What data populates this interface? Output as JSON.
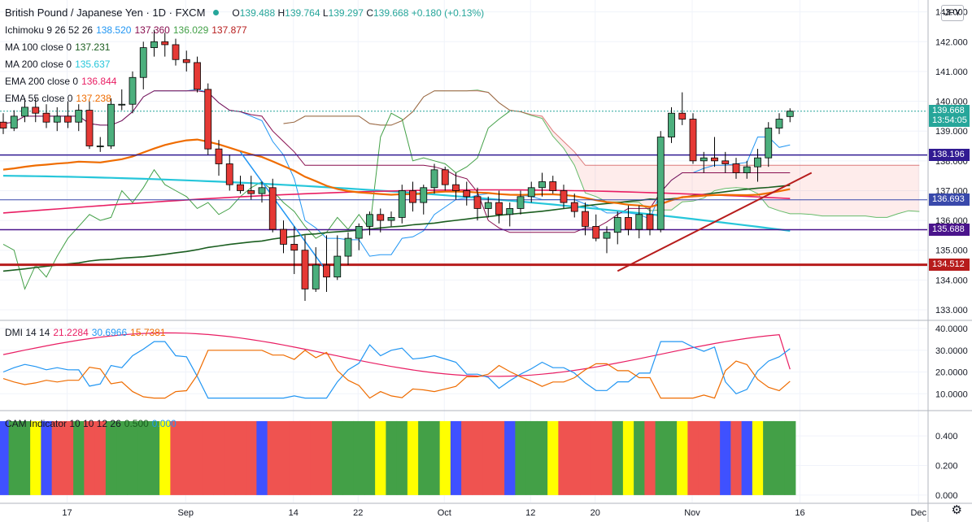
{
  "header": {
    "title": "British Pound / Japanese Yen · 1D · FXCM",
    "ohlc": [
      {
        "k": "O",
        "v": "139.488"
      },
      {
        "k": "H",
        "v": "139.764"
      },
      {
        "k": "L",
        "v": "139.297"
      },
      {
        "k": "C",
        "v": "139.668"
      }
    ],
    "change": "+0.180 (+0.13%)",
    "currency_badge": "JPY"
  },
  "indicators": [
    {
      "label": "Ichimoku 9 26 52 26",
      "values": [
        {
          "v": "138.520",
          "color": "#2196f3"
        },
        {
          "v": "137.360",
          "color": "#880e4f"
        },
        {
          "v": "136.029",
          "color": "#43a047"
        },
        {
          "v": "137.877",
          "color": "#b71c1c"
        }
      ]
    },
    {
      "label": "MA 100 close 0",
      "values": [
        {
          "v": "137.231",
          "color": "#1b5e20"
        }
      ]
    },
    {
      "label": "MA 200 close 0",
      "values": [
        {
          "v": "135.637",
          "color": "#26c6da"
        }
      ]
    },
    {
      "label": "EMA 200 close 0",
      "values": [
        {
          "v": "136.844",
          "color": "#e91e63"
        }
      ]
    },
    {
      "label": "EMA 55 close 0",
      "values": [
        {
          "v": "137.238",
          "color": "#ef6c00"
        }
      ]
    }
  ],
  "dmi_legend": {
    "label": "DMI 14 14",
    "values": [
      {
        "v": "21.2284",
        "color": "#e91e63"
      },
      {
        "v": "30.6966",
        "color": "#2196f3"
      },
      {
        "v": "15.7381",
        "color": "#ef6c00"
      }
    ]
  },
  "cam_legend": {
    "label": "CAM Indicator 10 10 12 26",
    "values": [
      {
        "v": "0.500",
        "color": "#1b5e20"
      },
      {
        "v": "0.000",
        "color": "#2196f3"
      }
    ]
  },
  "price_labels": [
    {
      "v": "139.668",
      "color": "#26a69a",
      "y": 139.668
    },
    {
      "v": "13:54:05",
      "color": "#26a69a",
      "y": 139.36
    },
    {
      "v": "138.196",
      "color": "#311b92",
      "y": 138.196
    },
    {
      "v": "136.693",
      "color": "#3949ab",
      "y": 136.693
    },
    {
      "v": "135.688",
      "color": "#4a148c",
      "y": 135.688
    },
    {
      "v": "134.512",
      "color": "#b71c1c",
      "y": 134.512
    }
  ],
  "chart_data": {
    "type": "candlestick",
    "price_axis": {
      "ticks": [
        "143.000",
        "142.000",
        "141.000",
        "140.000",
        "139.000",
        "138.000",
        "137.000",
        "136.000",
        "135.000",
        "134.000",
        "133.000"
      ],
      "range": [
        132.7,
        143.4
      ]
    },
    "dmi_axis": {
      "ticks": [
        "40.0000",
        "30.0000",
        "20.0000",
        "10.0000"
      ],
      "range": [
        3,
        43
      ]
    },
    "cam_axis": {
      "ticks": [
        "0.400",
        "0.200",
        "0.000"
      ],
      "range": [
        -0.05,
        0.56
      ]
    },
    "x_ticks": [
      {
        "label": "17",
        "i": 2
      },
      {
        "label": "Sep",
        "i": 13
      },
      {
        "label": "14",
        "i": 23
      },
      {
        "label": "22",
        "i": 29
      },
      {
        "label": "Oct",
        "i": 37
      },
      {
        "label": "12",
        "i": 45
      },
      {
        "label": "20",
        "i": 51
      },
      {
        "label": "Nov",
        "i": 60
      },
      {
        "label": "16",
        "i": 70
      },
      {
        "label": "Dec",
        "i": 81
      }
    ],
    "candles": [
      [
        139.3,
        139.6,
        138.9,
        139.1
      ],
      [
        139.1,
        139.7,
        139.0,
        139.5
      ],
      [
        139.5,
        140.1,
        139.3,
        139.8
      ],
      [
        139.8,
        140.1,
        139.3,
        139.6
      ],
      [
        139.6,
        139.9,
        139.1,
        139.3
      ],
      [
        139.3,
        139.8,
        139.0,
        139.5
      ],
      [
        139.5,
        140.0,
        139.1,
        139.3
      ],
      [
        139.3,
        139.9,
        139.0,
        139.7
      ],
      [
        139.7,
        140.0,
        138.4,
        138.5
      ],
      [
        138.5,
        138.8,
        138.3,
        138.5
      ],
      [
        138.5,
        140.1,
        138.4,
        139.9
      ],
      [
        139.9,
        140.4,
        139.7,
        139.9
      ],
      [
        139.9,
        141.0,
        139.6,
        140.8
      ],
      [
        140.8,
        142.0,
        140.4,
        141.8
      ],
      [
        141.8,
        142.4,
        141.5,
        142.0
      ],
      [
        142.0,
        142.3,
        141.5,
        141.9
      ],
      [
        141.9,
        142.1,
        141.2,
        141.4
      ],
      [
        141.4,
        141.7,
        141.0,
        141.3
      ],
      [
        141.3,
        141.5,
        140.3,
        140.4
      ],
      [
        140.4,
        140.6,
        138.2,
        138.4
      ],
      [
        138.4,
        138.7,
        137.5,
        137.9
      ],
      [
        137.9,
        138.2,
        137.0,
        137.2
      ],
      [
        137.2,
        137.5,
        136.9,
        137.0
      ],
      [
        137.0,
        137.5,
        136.7,
        136.9
      ],
      [
        136.9,
        137.3,
        136.6,
        137.1
      ],
      [
        137.1,
        137.4,
        135.6,
        135.7
      ],
      [
        135.7,
        136.0,
        134.9,
        135.2
      ],
      [
        135.2,
        135.8,
        134.2,
        135.0
      ],
      [
        135.0,
        135.5,
        133.3,
        133.7
      ],
      [
        133.7,
        135.1,
        133.6,
        134.5
      ],
      [
        134.5,
        135.5,
        133.6,
        134.1
      ],
      [
        134.1,
        135.5,
        134.0,
        134.8
      ],
      [
        134.8,
        135.6,
        134.5,
        135.4
      ],
      [
        135.4,
        135.9,
        135.0,
        135.8
      ],
      [
        135.8,
        136.3,
        135.5,
        136.2
      ],
      [
        136.2,
        136.4,
        135.6,
        136.0
      ],
      [
        136.0,
        136.3,
        135.8,
        136.1
      ],
      [
        136.1,
        137.2,
        135.9,
        137.0
      ],
      [
        137.0,
        137.3,
        136.3,
        136.6
      ],
      [
        136.6,
        137.2,
        136.2,
        137.1
      ],
      [
        137.1,
        137.9,
        136.9,
        137.7
      ],
      [
        137.7,
        137.8,
        137.0,
        137.2
      ],
      [
        137.2,
        137.6,
        136.7,
        137.0
      ],
      [
        137.0,
        137.3,
        136.5,
        136.8
      ],
      [
        136.8,
        137.1,
        136.0,
        136.4
      ],
      [
        136.4,
        136.8,
        136.1,
        136.6
      ],
      [
        136.6,
        137.0,
        135.9,
        136.2
      ],
      [
        136.2,
        136.6,
        135.8,
        136.4
      ],
      [
        136.4,
        137.0,
        136.2,
        136.8
      ],
      [
        136.8,
        137.3,
        136.6,
        137.1
      ],
      [
        137.1,
        137.6,
        136.8,
        137.3
      ],
      [
        137.3,
        137.5,
        136.9,
        137.0
      ],
      [
        137.0,
        137.2,
        136.4,
        136.6
      ],
      [
        136.6,
        136.9,
        136.1,
        136.3
      ],
      [
        136.3,
        136.6,
        135.5,
        135.8
      ],
      [
        135.8,
        136.2,
        135.3,
        135.4
      ],
      [
        135.4,
        135.8,
        134.9,
        135.6
      ],
      [
        135.6,
        136.3,
        135.2,
        136.1
      ],
      [
        136.1,
        136.5,
        135.5,
        135.7
      ],
      [
        135.7,
        136.5,
        135.4,
        136.2
      ],
      [
        136.2,
        136.4,
        135.5,
        135.7
      ],
      [
        135.7,
        139.0,
        135.6,
        138.8
      ],
      [
        138.8,
        139.8,
        138.6,
        139.6
      ],
      [
        139.6,
        140.3,
        139.2,
        139.4
      ],
      [
        139.4,
        139.6,
        137.9,
        138.0
      ],
      [
        138.0,
        138.3,
        137.6,
        138.1
      ],
      [
        138.1,
        138.8,
        137.8,
        138.0
      ],
      [
        138.0,
        138.3,
        137.6,
        137.9
      ],
      [
        137.9,
        138.1,
        137.4,
        137.6
      ],
      [
        137.6,
        138.0,
        137.4,
        137.8
      ],
      [
        137.8,
        138.4,
        137.3,
        138.1
      ],
      [
        138.1,
        139.3,
        137.8,
        139.1
      ],
      [
        139.1,
        139.6,
        138.9,
        139.4
      ],
      [
        139.488,
        139.764,
        139.297,
        139.668
      ]
    ]
  }
}
